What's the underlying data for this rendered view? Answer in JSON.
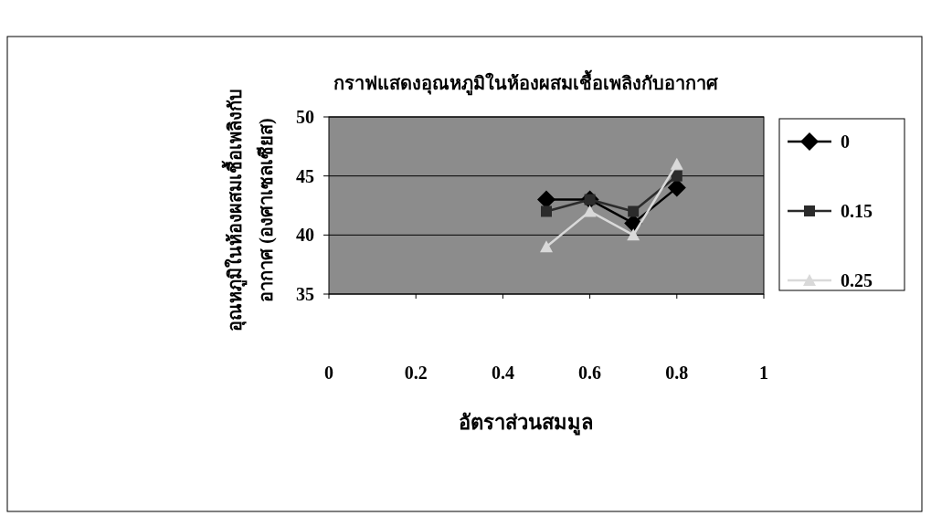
{
  "chart_data": {
    "type": "line",
    "title": "กราฟแสดงอุณหภูมิในห้องผสมเชื้อเพลิงกับอากาศ",
    "xlabel": "อัตราส่วนสมมูล",
    "ylabel": "อุณหภูมิในห้องผสมเชื้อเพลิงกับอากาศ (องศาเซลเซียส)",
    "x": [
      0.5,
      0.6,
      0.7,
      0.8
    ],
    "series": [
      {
        "name": "0",
        "color": "#000000",
        "marker": "diamond",
        "values": [
          43,
          43,
          41,
          44
        ]
      },
      {
        "name": "0.15",
        "color": "#2b2b2b",
        "marker": "square",
        "values": [
          42,
          43,
          42,
          45
        ]
      },
      {
        "name": "0.25",
        "color": "#d9d9d9",
        "marker": "triangle",
        "values": [
          39,
          42,
          40,
          46
        ]
      }
    ],
    "xlim": [
      0,
      1
    ],
    "xticks": [
      0,
      0.2,
      0.4,
      0.6,
      0.8,
      1
    ],
    "ylim": [
      35,
      50
    ],
    "yticks": [
      35,
      40,
      45,
      50
    ],
    "grid": "y",
    "legend": "right"
  }
}
